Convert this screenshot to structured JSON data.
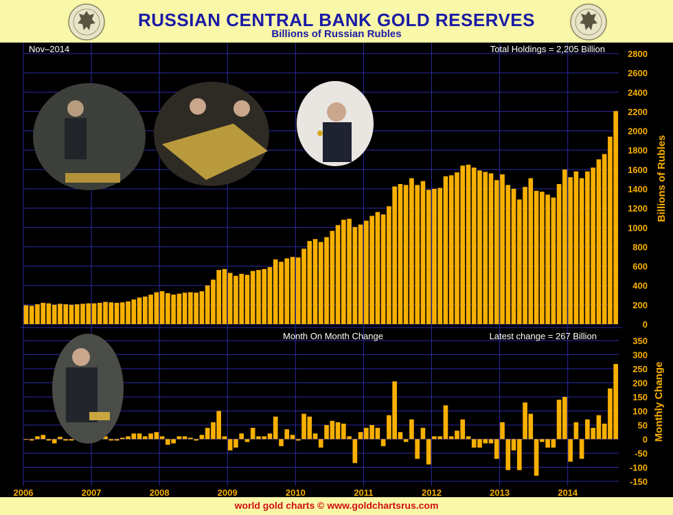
{
  "title": "RUSSIAN CENTRAL BANK GOLD RESERVES",
  "subtitle": "Billions of Russian Rubles",
  "footer": "world gold charts © www.goldchartsrus.com",
  "colors": {
    "background": "#F9F7A8",
    "plot_bg": "#000000",
    "bars": "#F8B000",
    "grid": "#2a2aa8",
    "title": "#1a1aa6",
    "axis_text": "#F8B000",
    "footer": "#d01010"
  },
  "chart_data": [
    {
      "type": "bar",
      "name": "holdings",
      "date_label": "Nov–2014",
      "annotation": "Total Holdings = 2,205 Billion",
      "ylabel": "Billions of Rubles",
      "ylim": [
        0,
        2800
      ],
      "yticks": [
        0,
        200,
        400,
        600,
        800,
        1000,
        1200,
        1400,
        1600,
        1800,
        2000,
        2200,
        2400,
        2600,
        2800
      ],
      "x_start": "2006-01",
      "x_end": "2014-11",
      "xticks": [
        "2006",
        "2007",
        "2008",
        "2009",
        "2010",
        "2011",
        "2012",
        "2013",
        "2014"
      ],
      "values": [
        195,
        190,
        205,
        220,
        215,
        200,
        210,
        205,
        200,
        205,
        210,
        215,
        215,
        220,
        230,
        225,
        220,
        225,
        235,
        255,
        275,
        285,
        305,
        330,
        340,
        320,
        305,
        315,
        325,
        330,
        325,
        340,
        400,
        460,
        560,
        570,
        530,
        500,
        520,
        510,
        550,
        560,
        570,
        590,
        670,
        645,
        680,
        695,
        690,
        780,
        860,
        880,
        850,
        900,
        965,
        1025,
        1080,
        1090,
        1005,
        1030,
        1070,
        1120,
        1160,
        1135,
        1220,
        1425,
        1450,
        1440,
        1510,
        1440,
        1480,
        1390,
        1400,
        1410,
        1530,
        1540,
        1570,
        1640,
        1650,
        1620,
        1590,
        1575,
        1560,
        1490,
        1550,
        1440,
        1400,
        1290,
        1420,
        1510,
        1380,
        1370,
        1340,
        1310,
        1450,
        1600,
        1520,
        1580,
        1510,
        1580,
        1620,
        1705,
        1760,
        1940,
        2205
      ]
    },
    {
      "type": "bar",
      "name": "change",
      "annotation_left": "Month On Month Change",
      "annotation_right": "Latest change = 267 Billion",
      "ylabel": "Monthly Change",
      "ylim": [
        -150,
        350
      ],
      "yticks": [
        -150,
        -100,
        -50,
        0,
        50,
        100,
        150,
        200,
        250,
        300,
        350
      ],
      "x_start": "2006-01",
      "x_end": "2014-11",
      "values": [
        0,
        -5,
        10,
        15,
        -5,
        -15,
        8,
        -5,
        -5,
        5,
        5,
        5,
        0,
        5,
        10,
        -5,
        -5,
        5,
        10,
        20,
        20,
        10,
        20,
        25,
        10,
        -20,
        -15,
        10,
        10,
        5,
        -5,
        15,
        40,
        60,
        100,
        10,
        -40,
        -30,
        20,
        -10,
        40,
        10,
        10,
        20,
        80,
        -25,
        35,
        15,
        -5,
        90,
        80,
        20,
        -30,
        50,
        65,
        60,
        55,
        10,
        -85,
        25,
        40,
        50,
        40,
        -25,
        85,
        205,
        25,
        -10,
        70,
        -70,
        40,
        -90,
        10,
        10,
        120,
        10,
        30,
        70,
        10,
        -30,
        -30,
        -15,
        -15,
        -70,
        60,
        -110,
        -40,
        -110,
        130,
        90,
        -130,
        -10,
        -30,
        -30,
        140,
        150,
        -80,
        60,
        -70,
        70,
        40,
        85,
        55,
        180,
        267
      ]
    }
  ]
}
